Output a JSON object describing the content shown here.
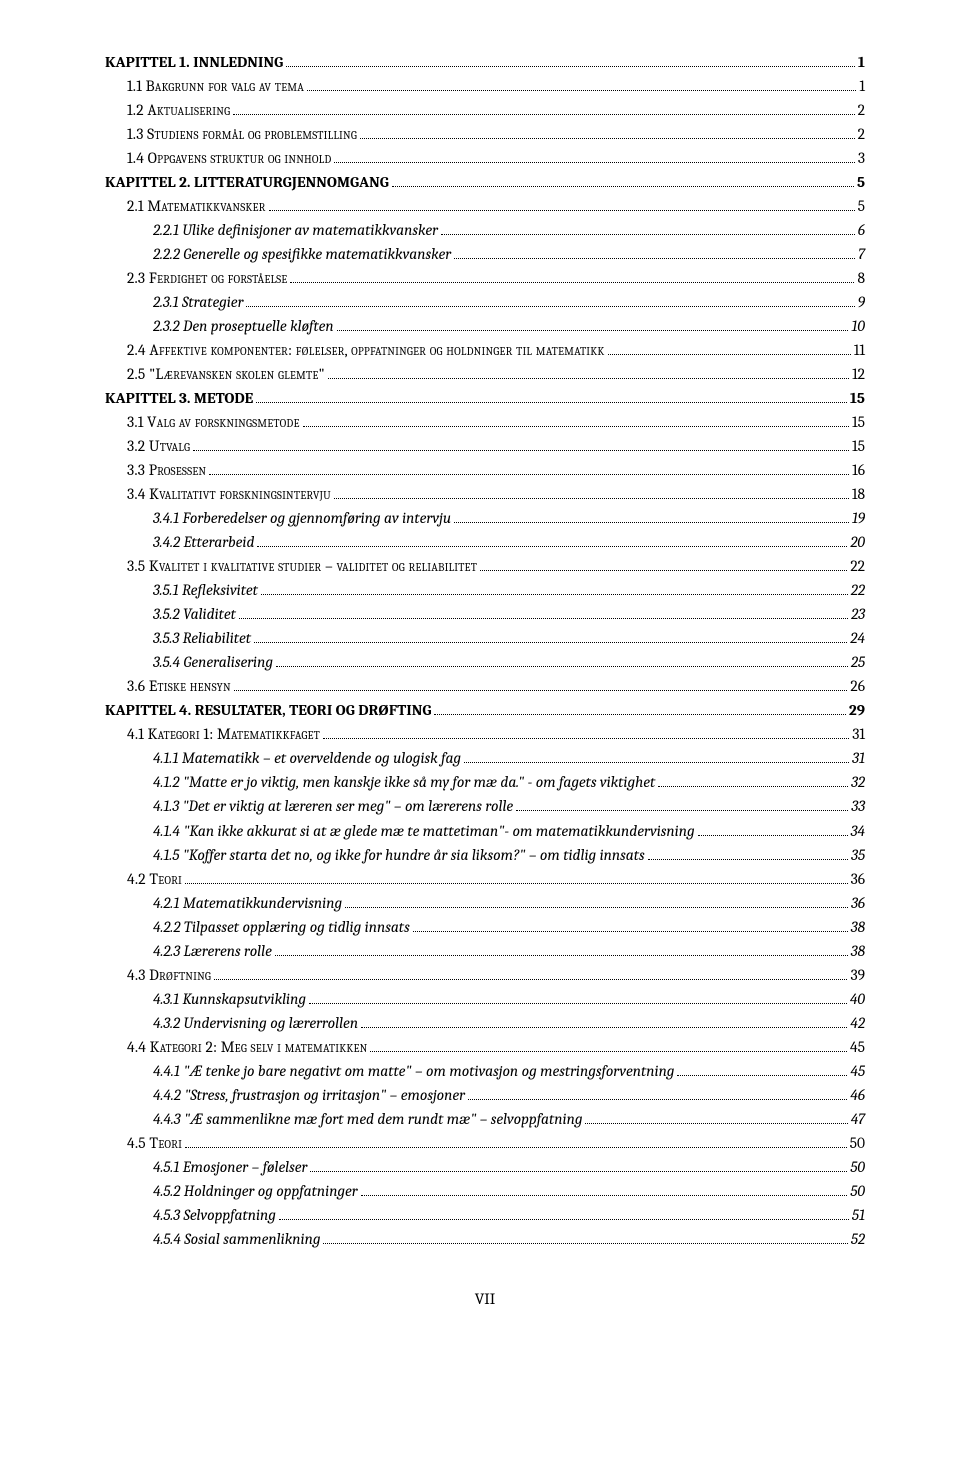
{
  "footer": "VII",
  "entries": [
    {
      "level": 0,
      "text": "KAPITTEL 1. INNLEDNING",
      "page": "1",
      "smallcaps": false
    },
    {
      "level": 1,
      "text": "1.1 Bakgrunn for valg av tema",
      "page": "1",
      "smallcaps": true
    },
    {
      "level": 1,
      "text": "1.2 Aktualisering",
      "page": "2",
      "smallcaps": true
    },
    {
      "level": 1,
      "text": "1.3 Studiens formål og problemstilling",
      "page": "2",
      "smallcaps": true
    },
    {
      "level": 1,
      "text": "1.4 Oppgavens struktur og innhold",
      "page": "3",
      "smallcaps": true
    },
    {
      "level": 0,
      "text": "KAPITTEL 2. LITTERATURGJENNOMGANG",
      "page": "5",
      "smallcaps": false
    },
    {
      "level": 1,
      "text": "2.1 Matematikkvansker",
      "page": "5",
      "smallcaps": true
    },
    {
      "level": 2,
      "text": "2.2.1 Ulike definisjoner av matematikkvansker",
      "page": " 6",
      "smallcaps": false
    },
    {
      "level": 2,
      "text": "2.2.2 Generelle og spesifikke matematikkvansker",
      "page": " 7",
      "smallcaps": false
    },
    {
      "level": 1,
      "text": "2.3 Ferdighet og forståelse",
      "page": "8",
      "smallcaps": true
    },
    {
      "level": 2,
      "text": "2.3.1 Strategier",
      "page": " 9",
      "smallcaps": false
    },
    {
      "level": 2,
      "text": "2.3.2 Den proseptuelle kløften",
      "page": "10",
      "smallcaps": false
    },
    {
      "level": 1,
      "text": "2.4 Affektive komponenter: følelser, oppfatninger og holdninger til matematikk",
      "page": "11",
      "smallcaps": true
    },
    {
      "level": 1,
      "text": "2.5 \"Lærevansken skolen glemte\"",
      "page": "12",
      "smallcaps": true
    },
    {
      "level": 0,
      "text": "KAPITTEL 3. METODE",
      "page": "15",
      "smallcaps": false
    },
    {
      "level": 1,
      "text": "3.1 Valg av forskningsmetode",
      "page": "15",
      "smallcaps": true
    },
    {
      "level": 1,
      "text": "3.2 Utvalg",
      "page": "15",
      "smallcaps": true
    },
    {
      "level": 1,
      "text": "3.3 Prosessen",
      "page": "16",
      "smallcaps": true
    },
    {
      "level": 1,
      "text": "3.4 Kvalitativt forskningsintervju",
      "page": "18",
      "smallcaps": true
    },
    {
      "level": 2,
      "text": "3.4.1 Forberedelser og gjennomføring av intervju",
      "page": "19",
      "smallcaps": false
    },
    {
      "level": 2,
      "text": "3.4.2 Etterarbeid",
      "page": "20",
      "smallcaps": false
    },
    {
      "level": 1,
      "text": "3.5 Kvalitet i kvalitative studier – validitet og reliabilitet",
      "page": "22",
      "smallcaps": true
    },
    {
      "level": 2,
      "text": "3.5.1 Refleksivitet",
      "page": "22",
      "smallcaps": false
    },
    {
      "level": 2,
      "text": "3.5.2 Validitet",
      "page": "23",
      "smallcaps": false
    },
    {
      "level": 2,
      "text": "3.5.3 Reliabilitet",
      "page": "24",
      "smallcaps": false
    },
    {
      "level": 2,
      "text": "3.5.4 Generalisering",
      "page": "25",
      "smallcaps": false
    },
    {
      "level": 1,
      "text": "3.6 Etiske hensyn",
      "page": "26",
      "smallcaps": true
    },
    {
      "level": 0,
      "text": "KAPITTEL 4. RESULTATER, TEORI OG DRØFTING",
      "page": "29",
      "smallcaps": false
    },
    {
      "level": 1,
      "text": "4.1 Kategori 1: Matematikkfaget",
      "page": "31",
      "smallcaps": true
    },
    {
      "level": 2,
      "text": "4.1.1 Matematikk – et overveldende og ulogisk fag",
      "page": "31",
      "smallcaps": false
    },
    {
      "level": 2,
      "text": "4.1.2 \"Matte er jo viktig, men kanskje ikke så my for mæ da.\" - om fagets viktighet",
      "page": "32",
      "smallcaps": false
    },
    {
      "level": 2,
      "text": "4.1.3 \"Det er viktig at læreren ser meg\" – om lærerens rolle",
      "page": "33",
      "smallcaps": false
    },
    {
      "level": 2,
      "text": "4.1.4 \"Kan ikke akkurat si at æ glede mæ te mattetiman\"- om matematikkundervisning",
      "page": "34",
      "smallcaps": false
    },
    {
      "level": 2,
      "text": "4.1.5 \"Koffer starta det no, og ikke for hundre år sia liksom?\" – om tidlig innsats",
      "page": "35",
      "smallcaps": false
    },
    {
      "level": 1,
      "text": "4.2 Teori",
      "page": "36",
      "smallcaps": true
    },
    {
      "level": 2,
      "text": "4.2.1 Matematikkundervisning",
      "page": "36",
      "smallcaps": false
    },
    {
      "level": 2,
      "text": "4.2.2 Tilpasset opplæring og tidlig innsats",
      "page": "38",
      "smallcaps": false
    },
    {
      "level": 2,
      "text": "4.2.3 Lærerens rolle",
      "page": "38",
      "smallcaps": false
    },
    {
      "level": 1,
      "text": "4.3 Drøftning",
      "page": "39",
      "smallcaps": true
    },
    {
      "level": 2,
      "text": "4.3.1 Kunnskapsutvikling",
      "page": "40",
      "smallcaps": false
    },
    {
      "level": 2,
      "text": "4.3.2 Undervisning og lærerrollen",
      "page": "42",
      "smallcaps": false
    },
    {
      "level": 1,
      "text": "4.4 Kategori 2: Meg selv i matematikken",
      "page": "45",
      "smallcaps": true
    },
    {
      "level": 2,
      "text": "4.4.1 \"Æ tenke jo bare negativt om matte\" – om motivasjon og mestringsforventning",
      "page": "45",
      "smallcaps": false
    },
    {
      "level": 2,
      "text": "4.4.2 \"Stress, frustrasjon og irritasjon\" – emosjoner",
      "page": "46",
      "smallcaps": false
    },
    {
      "level": 2,
      "text": "4.4.3 \"Æ sammenlikne mæ fort med dem rundt mæ\" – selvoppfatning",
      "page": "47",
      "smallcaps": false
    },
    {
      "level": 1,
      "text": "4.5 Teori",
      "page": "50",
      "smallcaps": true
    },
    {
      "level": 2,
      "text": "4.5.1 Emosjoner – følelser",
      "page": "50",
      "smallcaps": false
    },
    {
      "level": 2,
      "text": "4.5.2 Holdninger og oppfatninger",
      "page": "50",
      "smallcaps": false
    },
    {
      "level": 2,
      "text": "4.5.3 Selvoppfatning",
      "page": "51",
      "smallcaps": false
    },
    {
      "level": 2,
      "text": "4.5.4 Sosial sammenlikning",
      "page": "52",
      "smallcaps": false
    }
  ]
}
